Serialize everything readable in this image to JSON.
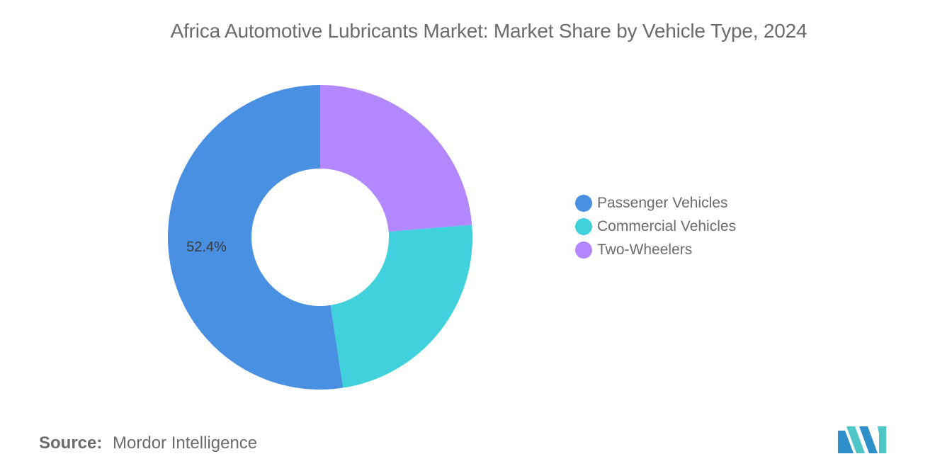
{
  "chart_data": {
    "type": "pie",
    "title": "Africa Automotive Lubricants Market: Market Share by Vehicle Type, 2024",
    "categories": [
      "Passenger Vehicles",
      "Commercial Vehicles",
      "Two-Wheelers"
    ],
    "values": [
      52.4,
      23.9,
      23.7
    ],
    "data_labels": [
      "52.4%",
      "",
      ""
    ],
    "colors": [
      "#4a90e2",
      "#40d1dc",
      "#b388ff"
    ],
    "donut": true,
    "legend_position": "right"
  },
  "source": {
    "label": "Source:",
    "text": "Mordor Intelligence"
  },
  "logo": {
    "icon": "mordor-intelligence-logo",
    "colors": [
      "#2f8fc8",
      "#4fc6c6"
    ]
  }
}
